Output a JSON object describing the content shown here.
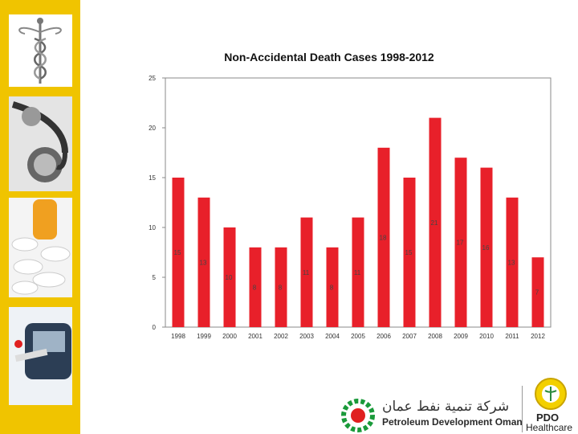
{
  "chart_data": {
    "type": "bar",
    "title": "Non-Accidental Death Cases 1998-2012",
    "categories": [
      "1998",
      "1999",
      "2000",
      "2001",
      "2002",
      "2003",
      "2004",
      "2005",
      "2006",
      "2007",
      "2008",
      "2009",
      "2010",
      "2011",
      "2012"
    ],
    "values": [
      15,
      13,
      10,
      8,
      8,
      11,
      8,
      11,
      18,
      15,
      21,
      17,
      16,
      13,
      7
    ],
    "ylim": [
      0,
      25
    ],
    "yticks": [
      0,
      5,
      10,
      15,
      20,
      25
    ],
    "grid": false,
    "bar_color": "#e8202a"
  },
  "sidebar": {
    "images": [
      "caduceus-icon",
      "stethoscope-icon",
      "pills-icon",
      "glucose-meter-icon"
    ]
  },
  "footer": {
    "arabic_name": "شركة تنمية نفط عمان",
    "company_name": "Petroleum Development Oman",
    "brand_line1": "PDO",
    "brand_line2": "Healthcare"
  }
}
